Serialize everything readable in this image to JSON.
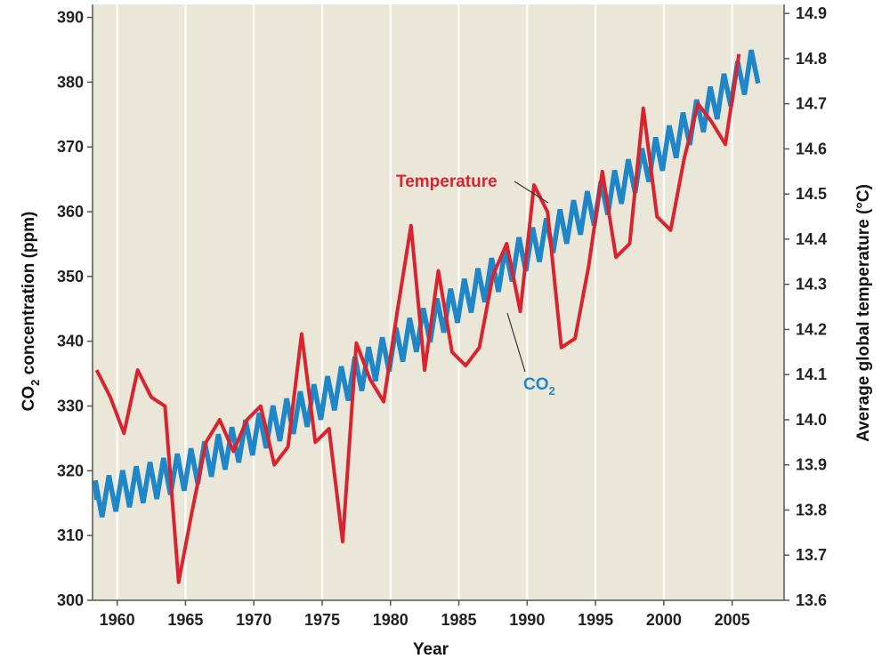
{
  "chart_data": {
    "type": "line",
    "title": "",
    "xlabel": "Year",
    "ylabel_left": "CO2 concentration (ppm)",
    "ylabel_right": "Average global temperature (°C)",
    "xlim": [
      1958.2,
      2008.8
    ],
    "ylim_left": [
      300,
      392
    ],
    "ylim_right": [
      13.6,
      14.92
    ],
    "x_ticks": [
      1960,
      1965,
      1970,
      1975,
      1980,
      1985,
      1990,
      1995,
      2000,
      2005
    ],
    "y_ticks_left": [
      300,
      310,
      320,
      330,
      340,
      350,
      360,
      370,
      380,
      390
    ],
    "y_ticks_right": [
      13.6,
      13.7,
      13.8,
      13.9,
      14.0,
      14.1,
      14.2,
      14.3,
      14.4,
      14.5,
      14.6,
      14.7,
      14.8,
      14.9
    ],
    "grid": "vertical",
    "colors": {
      "plot_bg": "#eae7d9",
      "grid": "#ffffff",
      "temperature": "#d9232e",
      "co2": "#1f86c8"
    },
    "series": [
      {
        "name": "Temperature",
        "axis": "right",
        "color": "#d9232e",
        "label": "Temperature",
        "x": [
          1958.5,
          1959.5,
          1960.5,
          1961.5,
          1962.5,
          1963.5,
          1964.5,
          1965.5,
          1966.5,
          1967.5,
          1968.5,
          1969.5,
          1970.5,
          1971.5,
          1972.5,
          1973.5,
          1974.5,
          1975.5,
          1976.5,
          1977.5,
          1978.5,
          1979.5,
          1980.5,
          1981.5,
          1982.5,
          1983.5,
          1984.5,
          1985.5,
          1986.5,
          1987.5,
          1988.5,
          1989.5,
          1990.5,
          1991.5,
          1992.5,
          1993.5,
          1994.5,
          1995.5,
          1996.5,
          1997.5,
          1998.5,
          1999.5,
          2000.5,
          2001.5,
          2002.5,
          2003.5,
          2004.5,
          2005.5
        ],
        "values": [
          14.11,
          14.05,
          13.97,
          14.11,
          14.05,
          14.03,
          13.64,
          13.8,
          13.95,
          14.0,
          13.93,
          14.0,
          14.03,
          13.9,
          13.94,
          14.19,
          13.95,
          13.98,
          13.73,
          14.17,
          14.09,
          14.04,
          14.24,
          14.43,
          14.11,
          14.33,
          14.15,
          14.12,
          14.16,
          14.32,
          14.39,
          14.24,
          14.52,
          14.46,
          14.16,
          14.18,
          14.34,
          14.55,
          14.36,
          14.39,
          14.69,
          14.45,
          14.42,
          14.58,
          14.7,
          14.66,
          14.61,
          14.81
        ]
      },
      {
        "name": "CO2",
        "axis": "left",
        "color": "#1f86c8",
        "label": "CO2",
        "baseline_x": [
          1958.5,
          1960,
          1965,
          1970,
          1975,
          1980,
          1985,
          1990,
          1995,
          2000,
          2005,
          2007
        ],
        "baseline_values": [
          315.5,
          316.8,
          320.0,
          325.5,
          331.0,
          338.5,
          346.0,
          354.0,
          361.0,
          369.5,
          379.5,
          383.0
        ],
        "seasonal_amplitude_ppm": 3.0
      }
    ],
    "annotations": [
      {
        "text": "Temperature",
        "color": "#d9232e",
        "target_series": "Temperature"
      },
      {
        "text": "CO",
        "sub": "2",
        "color": "#1f86c8",
        "target_series": "CO2"
      }
    ]
  }
}
